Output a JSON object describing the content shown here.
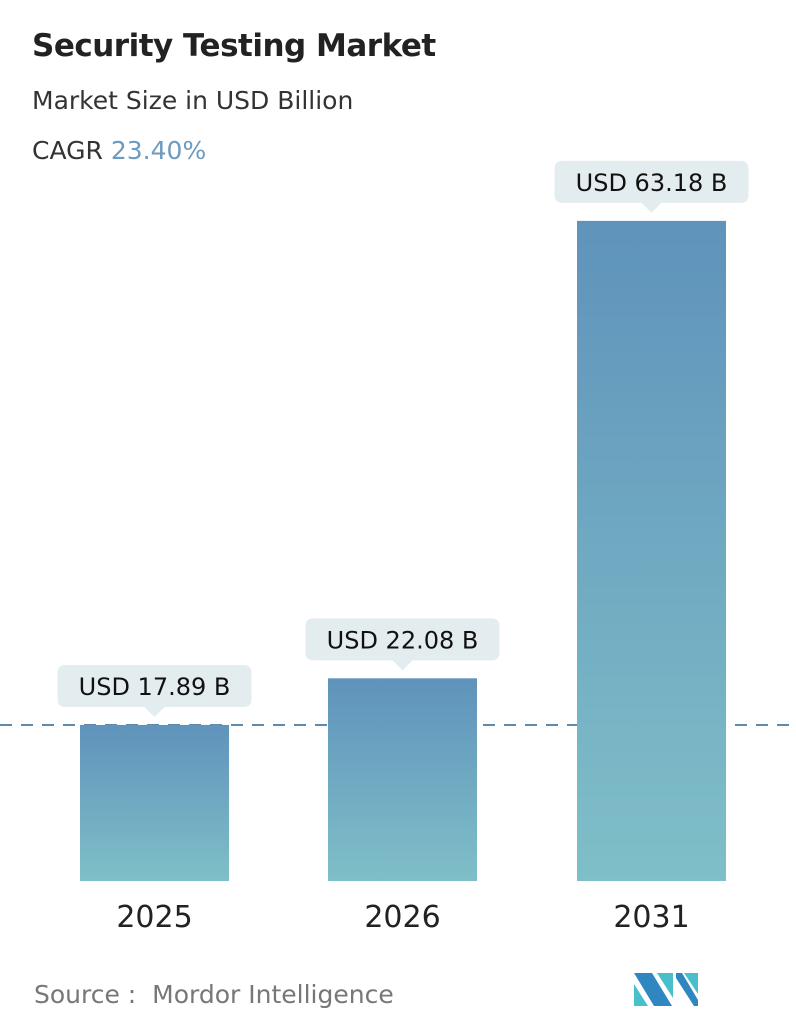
{
  "title": "Security Testing Market",
  "subtitle": "Market Size in USD Billion",
  "cagr_label": "CAGR",
  "cagr_value": "23.40%",
  "source_label": "Source :",
  "source_value": "Mordor Intelligence",
  "logo_text": "MI",
  "colors": {
    "bar_top": "#5f93bb",
    "bar_bottom": "#7fbfc8",
    "label_bg": "#e3ecef",
    "dash": "#5f89ad",
    "accent": "#6b9bc0"
  },
  "chart_data": {
    "type": "bar",
    "categories": [
      "2025",
      "2026",
      "2031"
    ],
    "values": [
      17.89,
      22.08,
      63.18
    ],
    "data_labels": [
      "USD 17.89 B",
      "USD 22.08 B",
      "USD 63.18 B"
    ],
    "title": "Security Testing Market",
    "ylabel": "Market Size in USD Billion",
    "grid": false,
    "reference_line": 17.89
  }
}
